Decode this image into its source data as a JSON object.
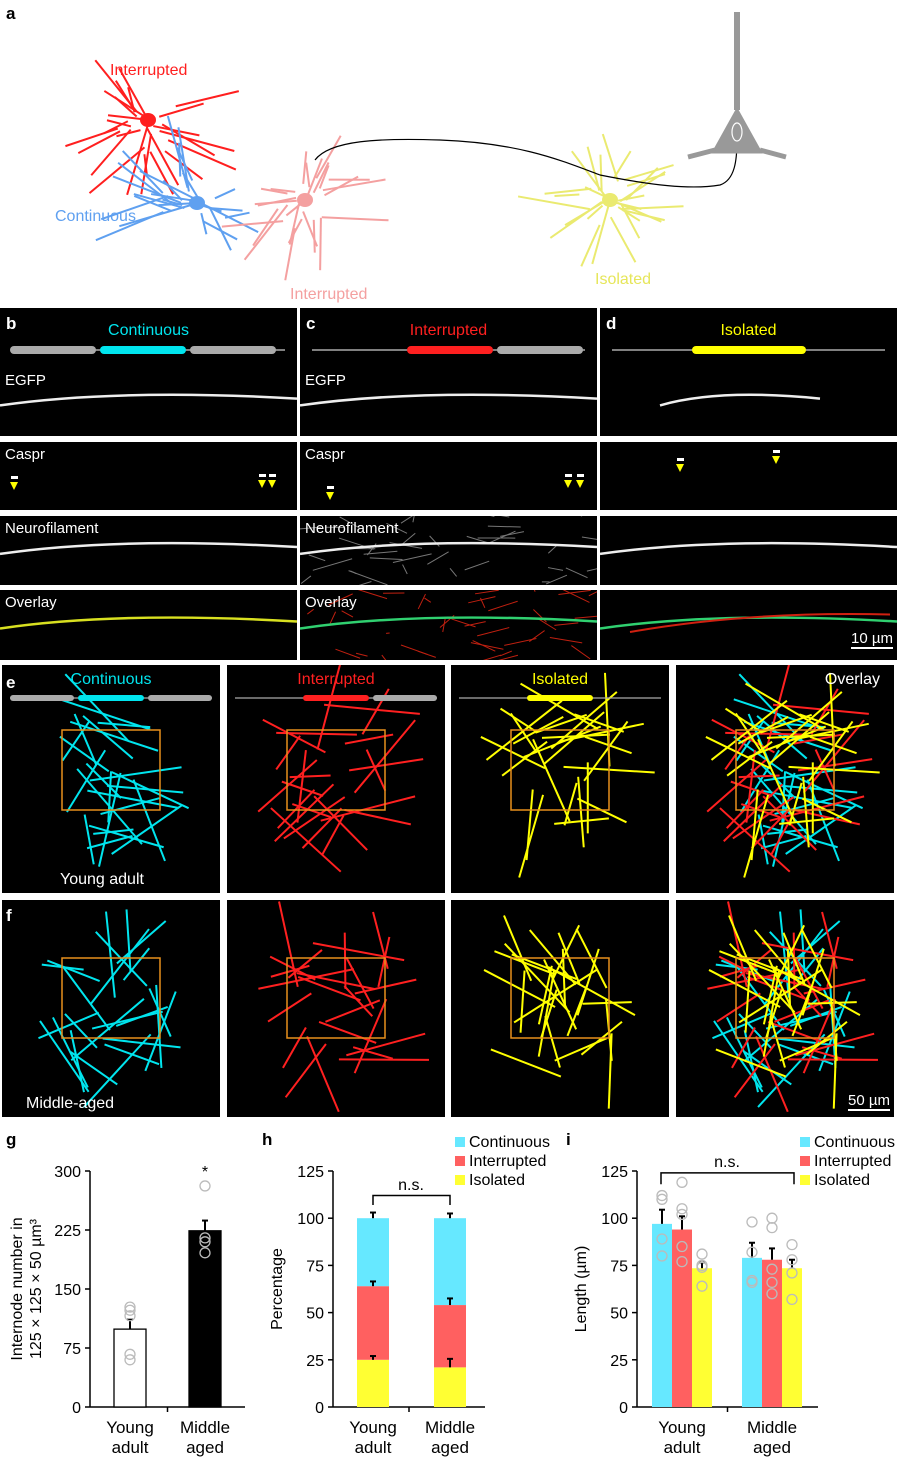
{
  "panel_labels": {
    "a": "a",
    "b": "b",
    "c": "c",
    "d": "d",
    "e": "e",
    "f": "f",
    "g": "g",
    "h": "h",
    "i": "i"
  },
  "colors": {
    "continuous": "#00e5ee",
    "interrupted": "#ff2020",
    "isolated": "#ffff00",
    "continuous_diagram": "#5fa0f0",
    "interrupted_light": "#f4a0a0",
    "chart_continuous": "#66e8ff",
    "chart_interrupted": "#ff6060",
    "chart_isolated": "#ffff33",
    "roi_box": "#e8901c",
    "neuron": "#999999"
  },
  "panel_a": {
    "labels": {
      "interrupted_top": "Interrupted",
      "continuous": "Continuous",
      "interrupted_bottom": "Interrupted",
      "isolated": "Isolated"
    }
  },
  "micrographs": {
    "columns": [
      {
        "title": "Continuous",
        "type": "continuous"
      },
      {
        "title": "Interrupted",
        "type": "interrupted"
      },
      {
        "title": "Isolated",
        "type": "isolated"
      }
    ],
    "rows": [
      "EGFP",
      "Caspr",
      "Neurofilament",
      "Overlay"
    ],
    "scale_bar": "10 µm"
  },
  "tracings": {
    "columns": [
      "Continuous",
      "Interrupted",
      "Isolated",
      "Overlay"
    ],
    "row_e_label": "Young adult",
    "row_f_label": "Middle-aged",
    "scale_bar": "50 µm"
  },
  "chart_data": [
    {
      "type": "bar",
      "id": "g",
      "ylabel": [
        "Internode number in",
        "125 × 125 × 50 µm³"
      ],
      "categories": [
        [
          "Young",
          "adult"
        ],
        [
          "Middle",
          "aged"
        ]
      ],
      "ylim": [
        0,
        300
      ],
      "yticks": [
        0,
        75,
        150,
        225,
        300
      ],
      "values": [
        99,
        224
      ],
      "errors": [
        12,
        13
      ],
      "bar_fills": [
        "#ffffff",
        "#000000"
      ],
      "points": [
        [
          127,
          123,
          116,
          67,
          60
        ],
        [
          281,
          215,
          210,
          196
        ]
      ],
      "annotation": "*"
    },
    {
      "type": "stacked-bar",
      "id": "h",
      "ylabel": "Percentage",
      "categories": [
        [
          "Young",
          "adult"
        ],
        [
          "Middle",
          "aged"
        ]
      ],
      "ylim": [
        0,
        125
      ],
      "yticks": [
        0,
        25,
        50,
        75,
        100,
        125
      ],
      "series": [
        {
          "name": "Isolated",
          "values": [
            25,
            21
          ],
          "errors": [
            2,
            4.5
          ]
        },
        {
          "name": "Interrupted",
          "values": [
            39,
            33
          ],
          "errors": [
            2.5,
            3.5
          ]
        },
        {
          "name": "Continuous",
          "values": [
            36,
            46
          ],
          "errors": [
            3,
            2.5
          ]
        }
      ],
      "legend": [
        "Continuous",
        "Interrupted",
        "Isolated"
      ],
      "legend_position": "top-right",
      "annotation": "n.s."
    },
    {
      "type": "grouped-bar",
      "id": "i",
      "ylabel": "Length (µm)",
      "categories": [
        [
          "Young",
          "adult"
        ],
        [
          "Middle",
          "aged"
        ]
      ],
      "ylim": [
        0,
        125
      ],
      "yticks": [
        0,
        25,
        50,
        75,
        100,
        125
      ],
      "series": [
        {
          "name": "Continuous",
          "values": [
            97,
            79
          ],
          "errors": [
            7.5,
            8
          ],
          "points": [
            [
              112,
              110,
              89,
              80
            ],
            [
              98,
              82,
              67,
              66
            ]
          ]
        },
        {
          "name": "Interrupted",
          "values": [
            94,
            78
          ],
          "errors": [
            7,
            6
          ],
          "points": [
            [
              119,
              105,
              102,
              85,
              77
            ],
            [
              100,
              95,
              73,
              66,
              60
            ]
          ]
        },
        {
          "name": "Isolated",
          "values": [
            73.5,
            73.5
          ],
          "errors": [
            3,
            4.5
          ],
          "points": [
            [
              81,
              75,
              74,
              64
            ],
            [
              86,
              78,
              71,
              57
            ]
          ]
        }
      ],
      "legend": [
        "Continuous",
        "Interrupted",
        "Isolated"
      ],
      "legend_position": "top-right",
      "annotation": "n.s."
    }
  ]
}
